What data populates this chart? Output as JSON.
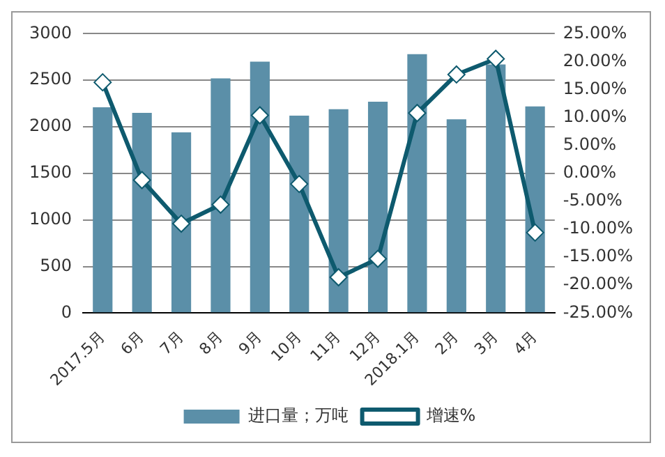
{
  "chart_data": {
    "type": "bar",
    "categories": [
      "2017.5月",
      "6月",
      "7月",
      "8月",
      "9月",
      "10月",
      "11月",
      "12月",
      "2018.1月",
      "2月",
      "3月",
      "4月"
    ],
    "series": [
      {
        "name": "进口量；万吨",
        "color": "#5b8fa8",
        "values": [
          2210,
          2150,
          1940,
          2520,
          2700,
          2120,
          2190,
          2270,
          2780,
          2080,
          2670,
          2220
        ]
      },
      {
        "name": "增速%",
        "type": "line",
        "axis": "y2",
        "color": "#0e5a6e",
        "marker": "diamond",
        "values": [
          16.3,
          -1.2,
          -9.0,
          -5.6,
          10.4,
          -1.9,
          -18.6,
          -15.3,
          10.8,
          17.7,
          20.5,
          -10.6
        ]
      }
    ],
    "ylim": [
      0,
      3000
    ],
    "yticks": [
      0,
      500,
      1000,
      1500,
      2000,
      2500,
      3000
    ],
    "y2lim": [
      -25,
      25
    ],
    "y2ticks": [
      {
        "value": -25,
        "label": "-25.00%"
      },
      {
        "value": -20,
        "label": "-20.00%"
      },
      {
        "value": -15,
        "label": "-15.00%"
      },
      {
        "value": -10,
        "label": "-10.00%"
      },
      {
        "value": -5,
        "label": "-5.00%"
      },
      {
        "value": 0,
        "label": "0.00%"
      },
      {
        "value": 5,
        "label": "5.00%"
      },
      {
        "value": 10,
        "label": "10.00%"
      },
      {
        "value": 15,
        "label": "15.00%"
      },
      {
        "value": 20,
        "label": "20.00%"
      },
      {
        "value": 25,
        "label": "25.00%"
      }
    ],
    "grid": "y",
    "legend": "bottom"
  }
}
